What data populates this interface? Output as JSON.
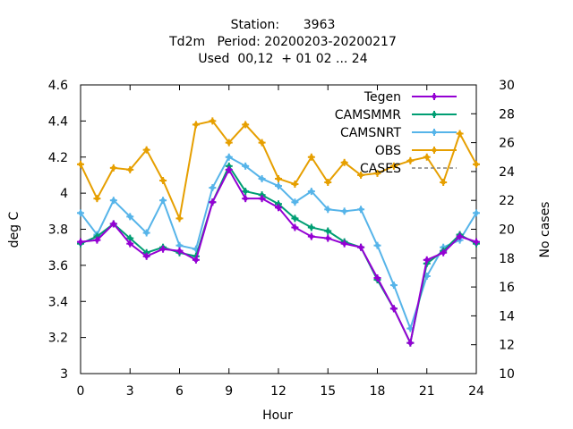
{
  "chart_data": {
    "type": "line",
    "title_lines": [
      "Station:      3963",
      "Td2m   Period: 20200203-20200217",
      "Used  00,12  + 01 02 ... 24"
    ],
    "xlabel": "Hour",
    "ylabel": "deg C",
    "y2label": "No cases",
    "xlim": [
      0,
      24
    ],
    "ylim": [
      3.0,
      4.6
    ],
    "y2lim": [
      10,
      30
    ],
    "x_ticks": [
      0,
      3,
      6,
      9,
      12,
      15,
      18,
      21,
      24
    ],
    "y_ticks": [
      "3",
      "3.2",
      "3.4",
      "3.6",
      "3.8",
      "4",
      "4.2",
      "4.4",
      "4.6"
    ],
    "y2_ticks": [
      "10",
      "12",
      "14",
      "16",
      "18",
      "20",
      "22",
      "24",
      "26",
      "28",
      "30"
    ],
    "legend_position": "top-right",
    "grid": false,
    "x": [
      0,
      1,
      2,
      3,
      4,
      5,
      6,
      7,
      8,
      9,
      10,
      11,
      12,
      13,
      14,
      15,
      16,
      17,
      18,
      19,
      20,
      21,
      22,
      23,
      24
    ],
    "series": [
      {
        "name": "Tegen",
        "color": "#9400d3",
        "axis": "y",
        "values": [
          3.73,
          3.74,
          3.83,
          3.72,
          3.65,
          3.69,
          3.68,
          3.63,
          3.95,
          4.13,
          3.97,
          3.97,
          3.92,
          3.81,
          3.76,
          3.75,
          3.72,
          3.7,
          3.53,
          3.36,
          3.17,
          3.63,
          3.67,
          3.76,
          3.73
        ]
      },
      {
        "name": "CAMSMMR",
        "color": "#009e73",
        "axis": "y",
        "values": [
          3.72,
          3.76,
          3.83,
          3.75,
          3.67,
          3.7,
          3.67,
          3.65,
          3.95,
          4.15,
          4.01,
          3.99,
          3.94,
          3.86,
          3.81,
          3.79,
          3.73,
          3.7,
          3.52,
          3.36,
          3.17,
          3.61,
          3.68,
          3.77,
          3.72
        ]
      },
      {
        "name": "CAMSNRT",
        "color": "#56b4e9",
        "axis": "y",
        "values": [
          3.89,
          3.77,
          3.96,
          3.87,
          3.78,
          3.96,
          3.71,
          3.69,
          4.03,
          4.2,
          4.15,
          4.08,
          4.04,
          3.95,
          4.01,
          3.91,
          3.9,
          3.91,
          3.71,
          3.49,
          3.25,
          3.54,
          3.7,
          3.74,
          3.89
        ]
      },
      {
        "name": "OBS",
        "color": "#e69f00",
        "axis": "y",
        "values": [
          4.16,
          3.97,
          4.14,
          4.13,
          4.24,
          4.07,
          3.86,
          4.38,
          4.4,
          4.28,
          4.38,
          4.28,
          4.08,
          4.05,
          4.2,
          4.06,
          4.17,
          4.1,
          4.11,
          4.15,
          4.18,
          4.2,
          4.06,
          4.33,
          4.16
        ]
      },
      {
        "name": "CASES",
        "color": "#808080",
        "axis": "y2",
        "values": [
          null,
          null,
          null,
          null,
          null,
          null,
          null,
          null,
          null,
          null,
          null,
          null,
          null,
          null,
          null,
          null,
          null,
          null,
          null,
          null,
          null,
          null,
          null,
          null,
          null
        ]
      }
    ]
  }
}
